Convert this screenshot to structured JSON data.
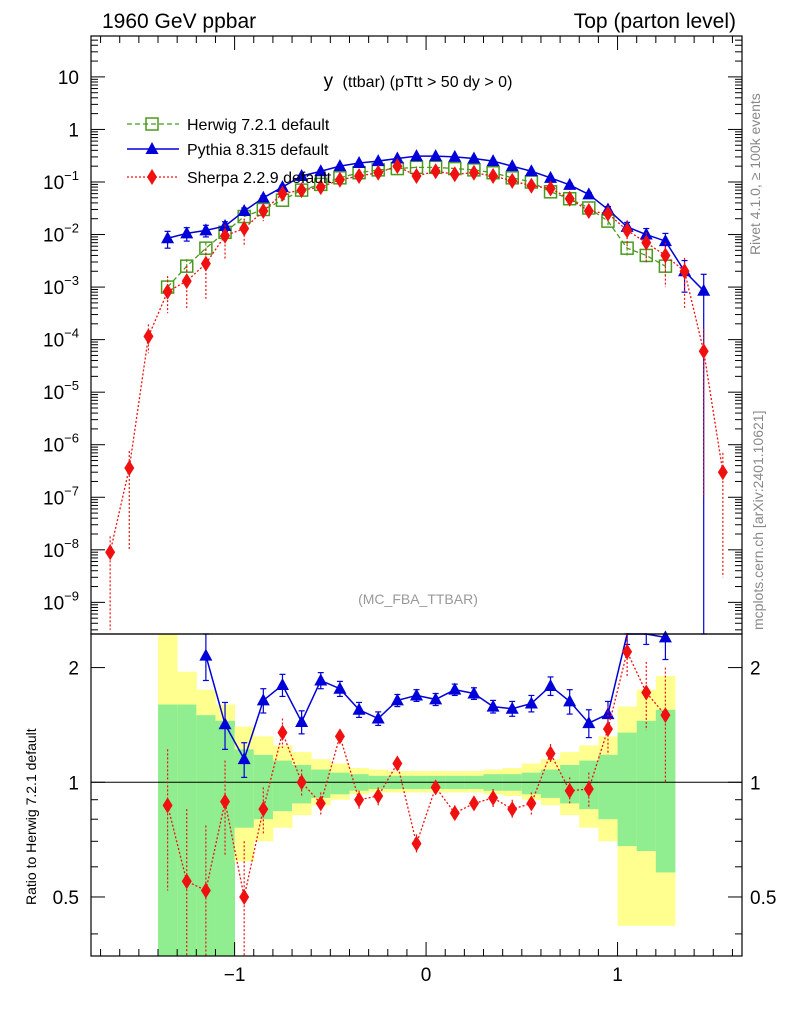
{
  "header": {
    "left": "1960 GeV ppbar",
    "right": "Top (parton level)"
  },
  "side": {
    "rivet": "Rivet 4.1.0, ≥ 100k events",
    "mcplots": "mcplots.cern.ch [arXiv:2401.10621]"
  },
  "colors": {
    "herwig": "#4a9a1e",
    "pythia": "#0000d8",
    "sherpa": "#f01010",
    "band_inner": "#90ee90",
    "band_outer": "#ffff90"
  },
  "chart_data": [
    {
      "type": "line",
      "title": "y (ttbar) (pTtt > 50 dy > 0)",
      "title_main": "y",
      "title_sub": "(ttbar) (pTtt > 50 dy > 0)",
      "watermark": "(MC_FBA_TTBAR)",
      "yscale": "log",
      "ylim": [
        2.5e-10,
        60
      ],
      "xlim": [
        -1.75,
        1.65
      ],
      "ytick_labels": [
        {
          "v": 10,
          "base": "10",
          "exp": ""
        },
        {
          "v": 1,
          "base": "1",
          "exp": ""
        },
        {
          "v": 0.1,
          "base": "10",
          "exp": "−1"
        },
        {
          "v": 0.01,
          "base": "10",
          "exp": "−2"
        },
        {
          "v": 0.001,
          "base": "10",
          "exp": "−3"
        },
        {
          "v": 0.0001,
          "base": "10",
          "exp": "−4"
        },
        {
          "v": 1e-05,
          "base": "10",
          "exp": "−5"
        },
        {
          "v": 1e-06,
          "base": "10",
          "exp": "−6"
        },
        {
          "v": 1e-07,
          "base": "10",
          "exp": "−7"
        },
        {
          "v": 1e-08,
          "base": "10",
          "exp": "−8"
        },
        {
          "v": 1e-09,
          "base": "10",
          "exp": "−9"
        }
      ],
      "legend": [
        "Herwig 7.2.1 default",
        "Pythia 8.315 default",
        "Sherpa 2.2.9 default"
      ],
      "series": [
        {
          "name": "Herwig 7.2.1 default",
          "x": [
            -1.35,
            -1.25,
            -1.15,
            -1.05,
            -0.95,
            -0.85,
            -0.75,
            -0.65,
            -0.55,
            -0.45,
            -0.35,
            -0.25,
            -0.15,
            -0.05,
            0.05,
            0.15,
            0.25,
            0.35,
            0.45,
            0.55,
            0.65,
            0.75,
            0.85,
            0.95,
            1.05,
            1.15,
            1.25
          ],
          "y": [
            0.001,
            0.0025,
            0.0055,
            0.011,
            0.022,
            0.03,
            0.045,
            0.07,
            0.09,
            0.12,
            0.15,
            0.17,
            0.18,
            0.19,
            0.19,
            0.18,
            0.17,
            0.15,
            0.12,
            0.1,
            0.065,
            0.048,
            0.032,
            0.018,
            0.0055,
            0.004,
            0.0025
          ],
          "err": [
            0.0004,
            0.0009,
            0.0015,
            0.002,
            0.003,
            0.003,
            0.004,
            0.005,
            0.006,
            0.007,
            0.008,
            0.009,
            0.009,
            0.009,
            0.009,
            0.009,
            0.009,
            0.008,
            0.007,
            0.006,
            0.005,
            0.004,
            0.003,
            0.003,
            0.0015,
            0.0012,
            0.0009
          ]
        },
        {
          "name": "Pythia 8.315 default",
          "x": [
            -1.35,
            -1.25,
            -1.15,
            -1.05,
            -0.95,
            -0.85,
            -0.75,
            -0.65,
            -0.55,
            -0.45,
            -0.35,
            -0.25,
            -0.15,
            -0.05,
            0.05,
            0.15,
            0.25,
            0.35,
            0.45,
            0.55,
            0.65,
            0.75,
            0.85,
            0.95,
            1.05,
            1.15,
            1.25,
            1.35,
            1.45
          ],
          "y": [
            0.0085,
            0.0105,
            0.012,
            0.0145,
            0.028,
            0.05,
            0.08,
            0.13,
            0.16,
            0.2,
            0.23,
            0.25,
            0.28,
            0.31,
            0.31,
            0.3,
            0.28,
            0.25,
            0.2,
            0.16,
            0.12,
            0.088,
            0.058,
            0.03,
            0.014,
            0.01,
            0.0075,
            0.002,
            0.00085
          ],
          "err": [
            0.003,
            0.003,
            0.003,
            0.003,
            0.004,
            0.005,
            0.006,
            0.008,
            0.009,
            0.01,
            0.011,
            0.012,
            0.012,
            0.013,
            0.013,
            0.012,
            0.012,
            0.011,
            0.01,
            0.009,
            0.008,
            0.006,
            0.005,
            0.004,
            0.003,
            0.003,
            0.003,
            0.0012,
            0.0009
          ]
        },
        {
          "name": "Sherpa 2.2.9 default",
          "x": [
            -1.65,
            -1.55,
            -1.45,
            -1.35,
            -1.25,
            -1.15,
            -1.05,
            -0.95,
            -0.85,
            -0.75,
            -0.65,
            -0.55,
            -0.45,
            -0.35,
            -0.25,
            -0.15,
            -0.05,
            0.05,
            0.15,
            0.25,
            0.35,
            0.45,
            0.55,
            0.65,
            0.75,
            0.85,
            0.95,
            1.05,
            1.15,
            1.25,
            1.35,
            1.45,
            1.55
          ],
          "y": [
            9e-09,
            3.6e-07,
            0.000115,
            0.00082,
            0.0013,
            0.0028,
            0.0095,
            0.013,
            0.028,
            0.06,
            0.07,
            0.08,
            0.11,
            0.13,
            0.15,
            0.2,
            0.13,
            0.16,
            0.14,
            0.15,
            0.13,
            0.105,
            0.085,
            0.075,
            0.048,
            0.028,
            0.025,
            0.012,
            0.007,
            0.004,
            0.002,
            6e-05,
            3e-07
          ],
          "err_lo": [
            8.7e-09,
            3.5e-07,
            6e-05,
            0.0005,
            0.0009,
            0.0022,
            0.006,
            0.007,
            0.01,
            0.015,
            0.01,
            0.01,
            0.01,
            0.01,
            0.012,
            0.02,
            0.012,
            0.015,
            0.012,
            0.012,
            0.012,
            0.01,
            0.01,
            0.01,
            0.009,
            0.007,
            0.007,
            0.006,
            0.004,
            0.003,
            0.0016,
            5.99e-05,
            2.97e-07
          ],
          "err_hi": [
            9e-09,
            4e-07,
            8e-05,
            0.0008,
            0.0012,
            0.0025,
            0.006,
            0.007,
            0.01,
            0.015,
            0.01,
            0.01,
            0.01,
            0.01,
            0.012,
            0.02,
            0.012,
            0.015,
            0.012,
            0.012,
            0.012,
            0.01,
            0.01,
            0.01,
            0.009,
            0.007,
            0.007,
            0.006,
            0.004,
            0.003,
            0.0016,
            0.0001,
            4e-07
          ]
        }
      ]
    },
    {
      "type": "line",
      "ylabel": "Ratio to Herwig 7.2.1 default",
      "yscale": "log",
      "ylim": [
        0.35,
        2.45
      ],
      "xlim": [
        -1.75,
        1.65
      ],
      "ytick_labels": [
        {
          "v": 2,
          "label": "2"
        },
        {
          "v": 1,
          "label": "1"
        },
        {
          "v": 0.5,
          "label": "0.5"
        }
      ],
      "xtick_labels": [
        {
          "v": -1,
          "label": "−1"
        },
        {
          "v": 0,
          "label": "0"
        },
        {
          "v": 1,
          "label": "1"
        }
      ],
      "reference": 1,
      "bands": {
        "x_edges": [
          -1.4,
          -1.3,
          -1.2,
          -1.1,
          -1.0,
          -0.9,
          -0.8,
          -0.7,
          -0.6,
          -0.5,
          -0.4,
          -0.3,
          -0.2,
          -0.1,
          0.0,
          0.1,
          0.2,
          0.3,
          0.4,
          0.5,
          0.6,
          0.7,
          0.8,
          0.9,
          1.0,
          1.1,
          1.2,
          1.3
        ],
        "inner_lo": [
          0.2,
          0.2,
          0.3,
          0.3,
          0.76,
          0.8,
          0.84,
          0.88,
          0.91,
          0.93,
          0.95,
          0.96,
          0.96,
          0.96,
          0.96,
          0.96,
          0.96,
          0.95,
          0.95,
          0.93,
          0.91,
          0.88,
          0.85,
          0.8,
          0.68,
          0.66,
          0.58
        ],
        "inner_hi": [
          1.6,
          1.6,
          1.5,
          1.45,
          1.22,
          1.18,
          1.14,
          1.11,
          1.08,
          1.06,
          1.05,
          1.04,
          1.04,
          1.04,
          1.04,
          1.04,
          1.04,
          1.05,
          1.05,
          1.06,
          1.08,
          1.11,
          1.14,
          1.18,
          1.35,
          1.45,
          1.55
        ],
        "outer_lo": [
          0.2,
          0.2,
          0.2,
          0.2,
          0.62,
          0.7,
          0.76,
          0.82,
          0.87,
          0.9,
          0.93,
          0.94,
          0.94,
          0.94,
          0.94,
          0.94,
          0.94,
          0.93,
          0.92,
          0.9,
          0.87,
          0.82,
          0.76,
          0.7,
          0.42,
          0.42,
          0.42
        ],
        "outer_hi": [
          2.5,
          1.95,
          1.75,
          1.6,
          1.4,
          1.32,
          1.25,
          1.2,
          1.15,
          1.12,
          1.09,
          1.08,
          1.07,
          1.07,
          1.07,
          1.07,
          1.07,
          1.08,
          1.09,
          1.12,
          1.15,
          1.2,
          1.25,
          1.32,
          1.58,
          1.75,
          1.9
        ]
      },
      "series": [
        {
          "name": "Pythia 8.315 default",
          "x": [
            -1.15,
            -1.05,
            -0.95,
            -0.85,
            -0.75,
            -0.65,
            -0.55,
            -0.45,
            -0.35,
            -0.25,
            -0.15,
            -0.05,
            0.05,
            0.15,
            0.25,
            0.35,
            0.45,
            0.55,
            0.65,
            0.75,
            0.85,
            0.95,
            1.05,
            1.15,
            1.25
          ],
          "y": [
            2.15,
            1.42,
            1.15,
            1.64,
            1.8,
            1.44,
            1.85,
            1.76,
            1.55,
            1.47,
            1.64,
            1.69,
            1.65,
            1.75,
            1.71,
            1.58,
            1.56,
            1.61,
            1.79,
            1.63,
            1.43,
            1.51,
            2.6,
            2.6,
            2.4
          ],
          "err": [
            0.3,
            0.2,
            0.12,
            0.12,
            0.12,
            0.1,
            0.09,
            0.08,
            0.07,
            0.06,
            0.06,
            0.06,
            0.06,
            0.06,
            0.06,
            0.06,
            0.07,
            0.08,
            0.1,
            0.12,
            0.12,
            0.12,
            0.3,
            0.3,
            0.3
          ]
        },
        {
          "name": "Sherpa 2.2.9 default",
          "x": [
            -1.35,
            -1.25,
            -1.15,
            -1.05,
            -0.95,
            -0.85,
            -0.75,
            -0.65,
            -0.55,
            -0.45,
            -0.35,
            -0.25,
            -0.15,
            -0.05,
            0.05,
            0.15,
            0.25,
            0.35,
            0.45,
            0.55,
            0.65,
            0.75,
            0.85,
            0.95,
            1.05,
            1.15,
            1.25
          ],
          "y": [
            0.87,
            0.55,
            0.52,
            0.89,
            0.5,
            0.85,
            1.35,
            1.0,
            0.88,
            1.32,
            0.9,
            0.92,
            1.12,
            0.69,
            0.97,
            0.83,
            0.88,
            0.91,
            0.85,
            0.88,
            1.19,
            0.95,
            0.96,
            1.38,
            2.2,
            1.72,
            1.5
          ],
          "err": [
            0.35,
            0.3,
            0.25,
            0.25,
            0.2,
            0.12,
            0.12,
            0.08,
            0.06,
            0.05,
            0.05,
            0.05,
            0.05,
            0.04,
            0.04,
            0.04,
            0.04,
            0.05,
            0.05,
            0.06,
            0.07,
            0.08,
            0.1,
            0.2,
            0.3,
            0.35,
            0.5
          ]
        }
      ]
    }
  ]
}
